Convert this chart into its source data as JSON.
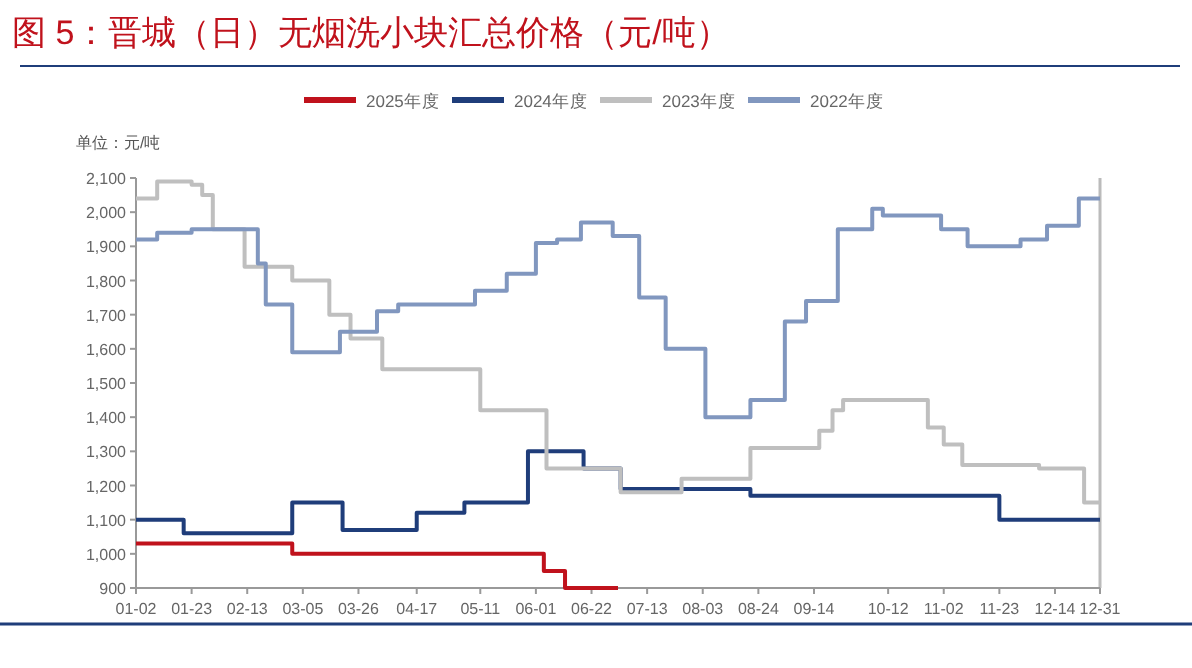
{
  "chart_data": {
    "type": "step",
    "title": "图 5：晋城（日）无烟洗小块汇总价格（元/吨）",
    "ylabel": "单位：元/吨",
    "xlim": [
      "--01-02",
      "--12-31"
    ],
    "xticks": [
      {
        "value": "--01-02",
        "label": "01-02"
      },
      {
        "value": "--01-23",
        "label": "01-23"
      },
      {
        "value": "--02-13",
        "label": "02-13"
      },
      {
        "value": "--03-05",
        "label": "03-05"
      },
      {
        "value": "--03-26",
        "label": "03-26"
      },
      {
        "value": "--04-17",
        "label": "04-17"
      },
      {
        "value": "--05-11",
        "label": "05-11"
      },
      {
        "value": "--06-01",
        "label": "06-01"
      },
      {
        "value": "--06-22",
        "label": "06-22"
      },
      {
        "value": "--07-13",
        "label": "07-13"
      },
      {
        "value": "--08-03",
        "label": "08-03"
      },
      {
        "value": "--08-24",
        "label": "08-24"
      },
      {
        "value": "--09-14",
        "label": "09-14"
      },
      {
        "value": "--10-12",
        "label": "10-12"
      },
      {
        "value": "--11-02",
        "label": "11-02"
      },
      {
        "value": "--11-23",
        "label": "11-23"
      },
      {
        "value": "--12-14",
        "label": "12-14"
      },
      {
        "value": "--12-31",
        "label": "12-31"
      }
    ],
    "ylim": [
      900,
      2100
    ],
    "yticks": [
      {
        "value": 900,
        "label": "900"
      },
      {
        "value": 1000,
        "label": "1,000"
      },
      {
        "value": 1100,
        "label": "1,100"
      },
      {
        "value": 1200,
        "label": "1,200"
      },
      {
        "value": 1300,
        "label": "1,300"
      },
      {
        "value": 1400,
        "label": "1,400"
      },
      {
        "value": 1500,
        "label": "1,500"
      },
      {
        "value": 1600,
        "label": "1,600"
      },
      {
        "value": 1700,
        "label": "1,700"
      },
      {
        "value": 1800,
        "label": "1,800"
      },
      {
        "value": 1900,
        "label": "1,900"
      },
      {
        "value": 2000,
        "label": "2,000"
      },
      {
        "value": 2100,
        "label": "2,100"
      }
    ],
    "legend": "top",
    "grid": false,
    "series": [
      {
        "name": "2025年度",
        "color": "#c0121c",
        "x": [
          "--01-02",
          "--03-01",
          "--06-04",
          "--06-12",
          "--07-02"
        ],
        "values": [
          1030,
          1000,
          950,
          900,
          900
        ]
      },
      {
        "name": "2024年度",
        "color": "#1f3d7a",
        "x": [
          "--01-02",
          "--01-20",
          "--03-01",
          "--03-20",
          "--04-17",
          "--05-05",
          "--05-29",
          "--06-19",
          "--07-03",
          "--08-21",
          "--11-23",
          "--12-31"
        ],
        "values": [
          1100,
          1060,
          1150,
          1070,
          1120,
          1150,
          1300,
          1250,
          1190,
          1170,
          1100,
          1100
        ]
      },
      {
        "name": "2023年度",
        "color": "#bfbfbf",
        "x": [
          "--01-02",
          "--01-10",
          "--01-23",
          "--01-27",
          "--01-31",
          "--02-12",
          "--03-01",
          "--03-15",
          "--03-23",
          "--04-04",
          "--05-11",
          "--06-05",
          "--07-03",
          "--07-26",
          "--08-21",
          "--09-16",
          "--09-21",
          "--09-25",
          "--10-27",
          "--11-02",
          "--11-09",
          "--12-08",
          "--12-25",
          "--12-31"
        ],
        "values": [
          2040,
          2090,
          2080,
          2050,
          1950,
          1840,
          1800,
          1700,
          1630,
          1540,
          1420,
          1250,
          1180,
          1220,
          1310,
          1360,
          1420,
          1450,
          1370,
          1320,
          1260,
          1250,
          1150,
          1150
        ]
      },
      {
        "name": "2022年度",
        "color": "#8197bf",
        "x": [
          "--01-02",
          "--01-10",
          "--01-23",
          "--02-17",
          "--02-20",
          "--03-01",
          "--03-19",
          "--04-02",
          "--04-10",
          "--05-09",
          "--05-21",
          "--06-01",
          "--06-09",
          "--06-18",
          "--06-30",
          "--07-10",
          "--07-20",
          "--08-04",
          "--08-21",
          "--09-03",
          "--09-11",
          "--09-23",
          "--10-06",
          "--10-10",
          "--11-01",
          "--11-11",
          "--12-01",
          "--12-11",
          "--12-23",
          "--12-31"
        ],
        "values": [
          1920,
          1940,
          1950,
          1850,
          1730,
          1590,
          1650,
          1710,
          1730,
          1770,
          1820,
          1910,
          1920,
          1970,
          1930,
          1750,
          1600,
          1400,
          1450,
          1680,
          1740,
          1950,
          2010,
          1990,
          1950,
          1900,
          1920,
          1960,
          2040,
          2040
        ]
      }
    ]
  }
}
